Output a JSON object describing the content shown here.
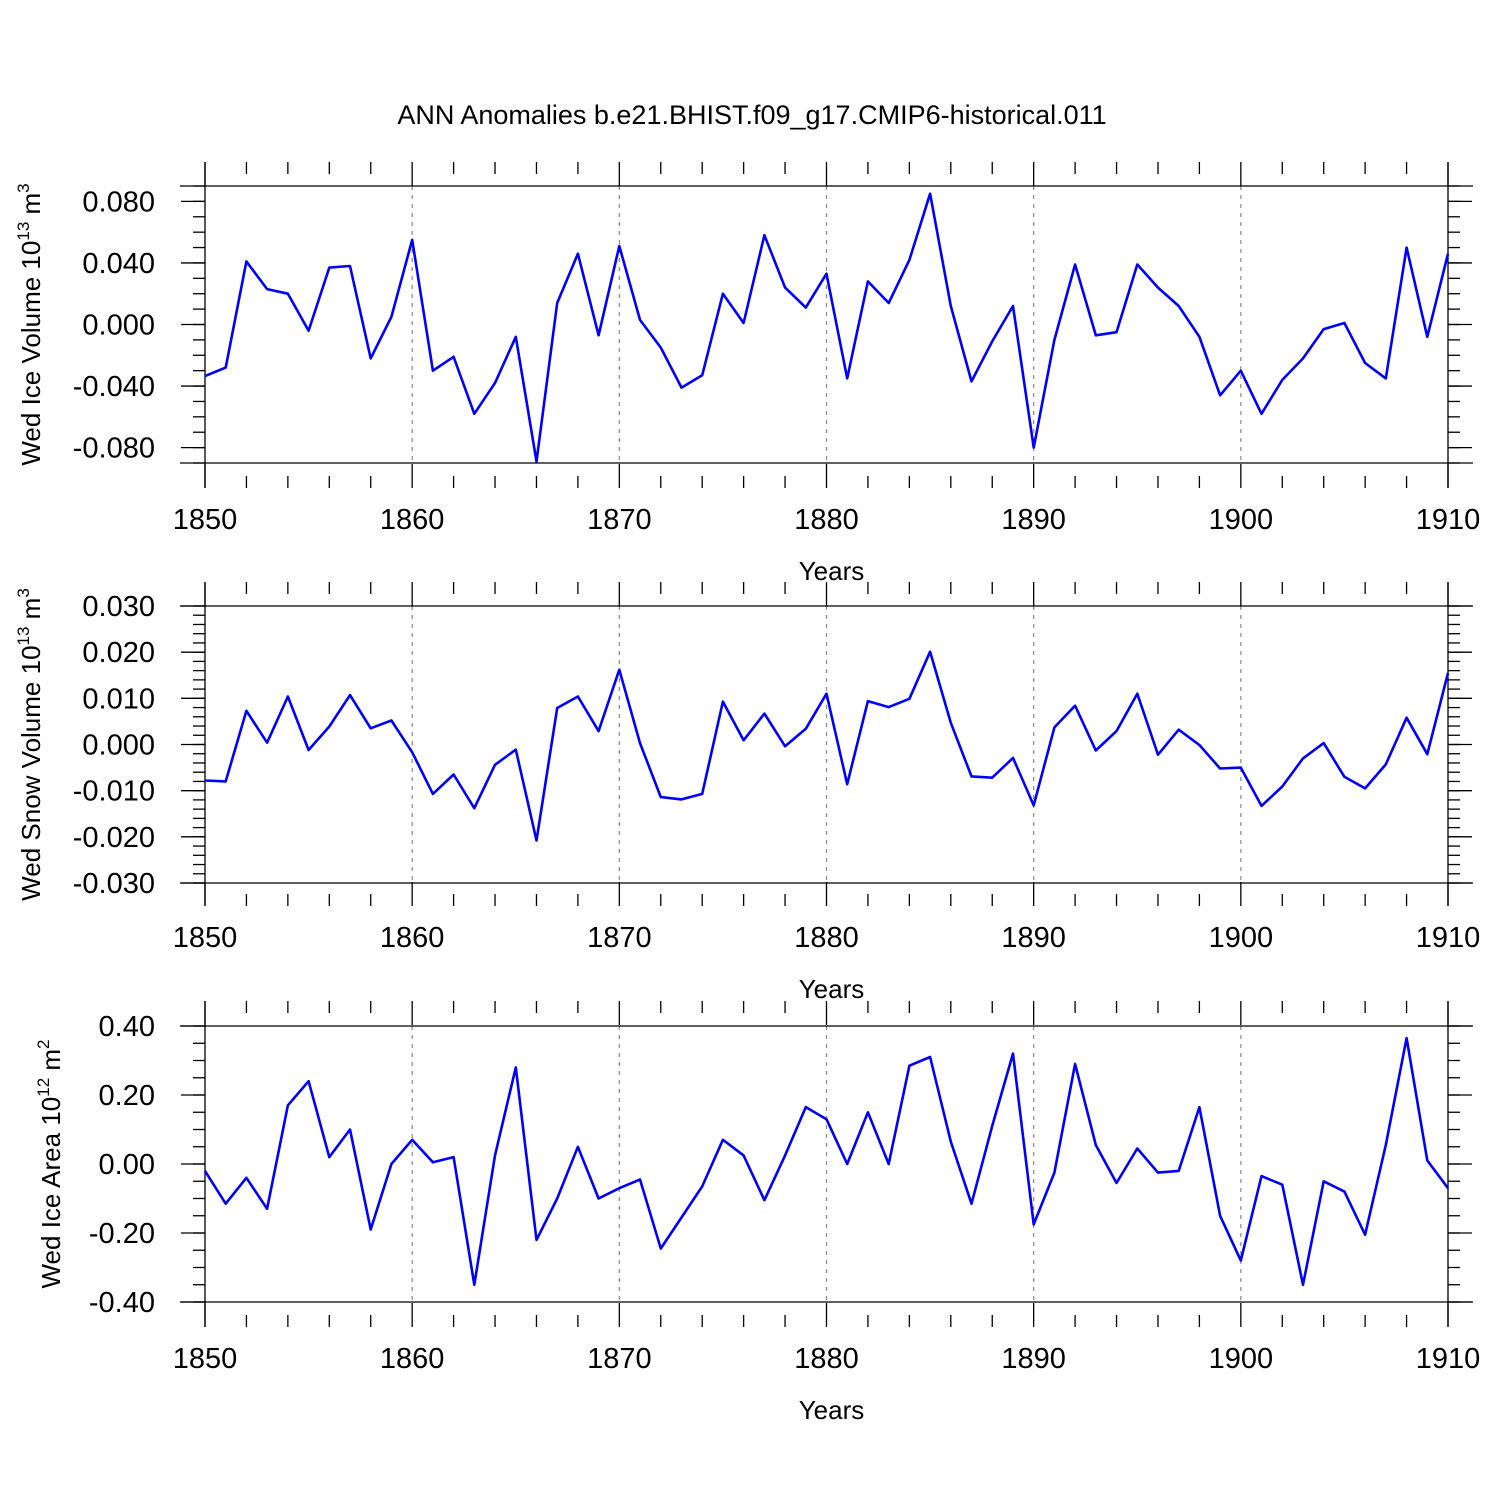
{
  "figure": {
    "title": "ANN Anomalies b.e21.BHIST.f09_g17.CMIP6-historical.011"
  },
  "chart_data": [
    {
      "type": "line",
      "xlabel": "Years",
      "ylabel": {
        "text": "Wed Ice Volume 10",
        "exp": "13",
        "unit": " m",
        "unit_exp": "3"
      },
      "xlim": [
        1850,
        1910
      ],
      "ylim": [
        -0.09,
        0.09
      ],
      "x_ticks": [
        "1850",
        "1860",
        "1870",
        "1880",
        "1890",
        "1900",
        "1910"
      ],
      "y_ticks": [
        {
          "v": 0.08,
          "label": "0.080"
        },
        {
          "v": 0.04,
          "label": "0.040"
        },
        {
          "v": 0.0,
          "label": "0.000"
        },
        {
          "v": -0.04,
          "label": "-0.040"
        },
        {
          "v": -0.08,
          "label": "-0.080"
        }
      ],
      "y_minor_step": 0.01,
      "grid": "vertical dashed at major x ticks",
      "series": [
        {
          "color": "#0000ff",
          "x_start": 1850,
          "values": [
            -0.0335,
            -0.028,
            0.041,
            0.023,
            0.02,
            -0.004,
            0.037,
            0.038,
            -0.022,
            0.005,
            0.055,
            -0.03,
            -0.021,
            -0.058,
            -0.038,
            -0.008,
            -0.089,
            0.014,
            0.046,
            -0.007,
            0.051,
            0.003,
            -0.015,
            -0.041,
            -0.033,
            0.02,
            0.001,
            0.058,
            0.024,
            0.011,
            0.033,
            -0.035,
            0.028,
            0.014,
            0.042,
            0.085,
            0.012,
            -0.037,
            -0.011,
            0.012,
            -0.08,
            -0.01,
            0.039,
            -0.007,
            -0.005,
            0.039,
            0.024,
            0.012,
            -0.008,
            -0.046,
            -0.03,
            -0.058,
            -0.036,
            -0.022,
            -0.003,
            0.001,
            -0.025,
            -0.035,
            0.05,
            -0.008,
            0.046
          ]
        }
      ]
    },
    {
      "type": "line",
      "xlabel": "Years",
      "ylabel": {
        "text": "Wed Snow Volume 10",
        "exp": "13",
        "unit": " m",
        "unit_exp": "3"
      },
      "xlim": [
        1850,
        1910
      ],
      "ylim": [
        -0.03,
        0.03
      ],
      "x_ticks": [
        "1850",
        "1860",
        "1870",
        "1880",
        "1890",
        "1900",
        "1910"
      ],
      "y_ticks": [
        {
          "v": 0.03,
          "label": "0.030"
        },
        {
          "v": 0.02,
          "label": "0.020"
        },
        {
          "v": 0.01,
          "label": "0.010"
        },
        {
          "v": 0.0,
          "label": "0.000"
        },
        {
          "v": -0.01,
          "label": "-0.010"
        },
        {
          "v": -0.02,
          "label": "-0.020"
        },
        {
          "v": -0.03,
          "label": "-0.030"
        }
      ],
      "y_minor_step": 0.002,
      "grid": "vertical dashed at major x ticks",
      "series": [
        {
          "color": "#0000ff",
          "x_start": 1850,
          "values": [
            -0.0078,
            -0.008,
            0.0073,
            0.0004,
            0.0104,
            -0.0012,
            0.0039,
            0.0107,
            0.0035,
            0.0052,
            -0.0017,
            -0.0107,
            -0.0065,
            -0.0138,
            -0.0044,
            -0.0011,
            -0.0208,
            0.0079,
            0.0104,
            0.0029,
            0.0162,
            0.0003,
            -0.0114,
            -0.0119,
            -0.0107,
            0.0093,
            0.0009,
            0.0067,
            -0.0004,
            0.0034,
            0.011,
            -0.0086,
            0.0094,
            0.0081,
            0.0099,
            0.0201,
            0.0047,
            -0.0069,
            -0.0072,
            -0.0029,
            -0.0132,
            0.0037,
            0.0084,
            -0.0013,
            0.0029,
            0.011,
            -0.0022,
            0.0032,
            -0.0001,
            -0.0052,
            -0.005,
            -0.0133,
            -0.0091,
            -0.003,
            0.0003,
            -0.007,
            -0.0095,
            -0.0043,
            0.0058,
            -0.0021,
            0.0155
          ]
        }
      ]
    },
    {
      "type": "line",
      "xlabel": "Years",
      "ylabel": {
        "text": "Wed Ice Area 10",
        "exp": "12",
        "unit": " m",
        "unit_exp": "2"
      },
      "xlim": [
        1850,
        1910
      ],
      "ylim": [
        -0.4,
        0.4
      ],
      "x_ticks": [
        "1850",
        "1860",
        "1870",
        "1880",
        "1890",
        "1900",
        "1910"
      ],
      "y_ticks": [
        {
          "v": 0.4,
          "label": "0.40"
        },
        {
          "v": 0.2,
          "label": "0.20"
        },
        {
          "v": 0.0,
          "label": "0.00"
        },
        {
          "v": -0.2,
          "label": "-0.20"
        },
        {
          "v": -0.4,
          "label": "-0.40"
        }
      ],
      "y_minor_step": 0.05,
      "grid": "vertical dashed at major x ticks",
      "series": [
        {
          "color": "#0000ff",
          "x_start": 1850,
          "values": [
            -0.02,
            -0.115,
            -0.04,
            -0.13,
            0.17,
            0.24,
            0.02,
            0.1,
            -0.19,
            0.0,
            0.07,
            0.005,
            0.02,
            -0.35,
            0.025,
            0.28,
            -0.22,
            -0.1,
            0.05,
            -0.1,
            -0.07,
            -0.045,
            -0.245,
            -0.155,
            -0.065,
            0.07,
            0.025,
            -0.105,
            0.025,
            0.165,
            0.13,
            0.0,
            0.15,
            0.0,
            0.285,
            0.31,
            0.065,
            -0.115,
            0.11,
            0.32,
            -0.175,
            -0.025,
            0.29,
            0.055,
            -0.055,
            0.045,
            -0.025,
            -0.02,
            0.165,
            -0.15,
            -0.28,
            -0.035,
            -0.06,
            -0.35,
            -0.05,
            -0.08,
            -0.205,
            0.055,
            0.365,
            0.01,
            -0.07
          ]
        }
      ]
    }
  ]
}
